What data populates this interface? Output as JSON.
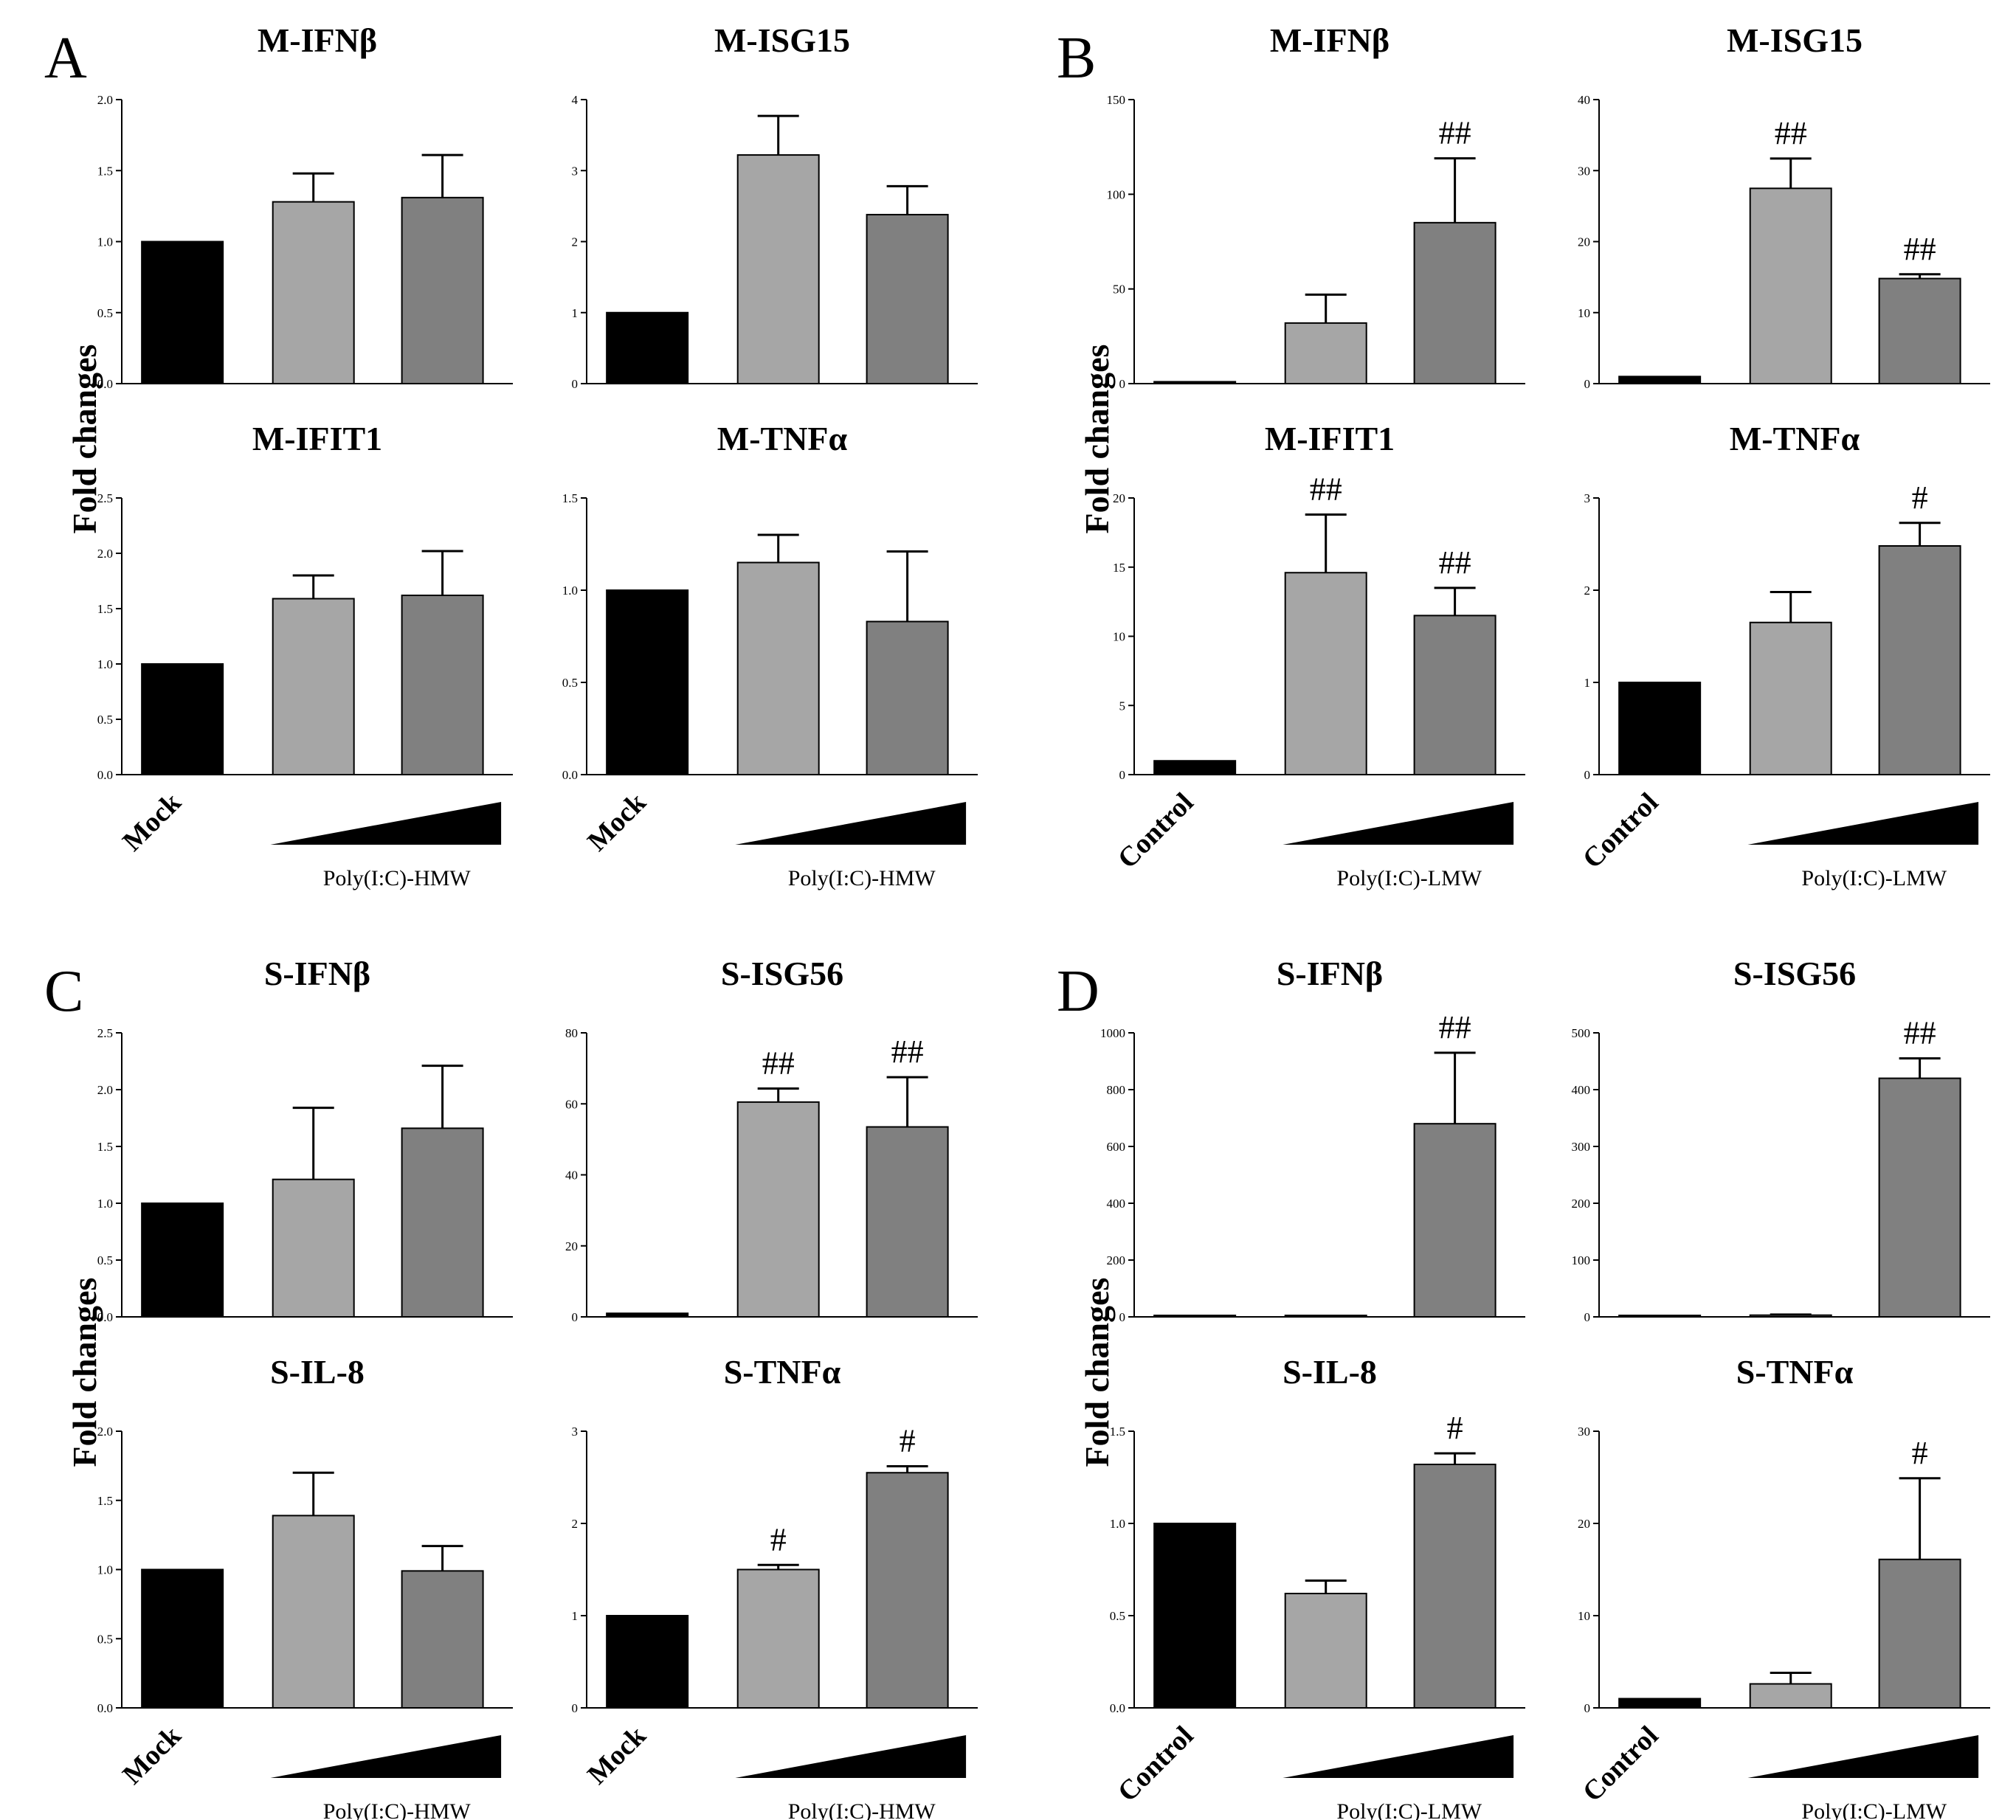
{
  "figure": {
    "y_axis_label": "Fold changes",
    "panels": [
      {
        "letter": "A",
        "control_label": "Mock",
        "treatment_label": "Poly(I:C)-HMW"
      },
      {
        "letter": "B",
        "control_label": "Control",
        "treatment_label": "Poly(I:C)-LMW"
      },
      {
        "letter": "C",
        "control_label": "Mock",
        "treatment_label": "Poly(I:C)-HMW"
      },
      {
        "letter": "D",
        "control_label": "Control",
        "treatment_label": "Poly(I:C)-LMW"
      }
    ]
  },
  "colors": {
    "control": "#000000",
    "low_dose": "#a6a6a6",
    "high_dose": "#808080"
  },
  "chart_data": [
    {
      "id": "A1",
      "panel": "A",
      "type": "bar",
      "title": "M-IFNβ",
      "ylim": [
        0,
        2.0
      ],
      "yticks": [
        "0.0",
        "0.5",
        "1.0",
        "1.5",
        "2.0"
      ],
      "values": [
        1.0,
        1.28,
        1.31
      ],
      "errors": [
        0,
        0.2,
        0.3
      ],
      "sig": [
        "",
        "",
        ""
      ]
    },
    {
      "id": "A2",
      "panel": "A",
      "type": "bar",
      "title": "M-ISG15",
      "ylim": [
        0,
        4
      ],
      "yticks": [
        "0",
        "1",
        "2",
        "3",
        "4"
      ],
      "values": [
        1.0,
        3.22,
        2.38
      ],
      "errors": [
        0,
        0.55,
        0.4
      ],
      "sig": [
        "",
        "",
        ""
      ]
    },
    {
      "id": "A3",
      "panel": "A",
      "type": "bar",
      "title": "M-IFIT1",
      "ylim": [
        0,
        2.5
      ],
      "yticks": [
        "0.0",
        "0.5",
        "1.0",
        "1.5",
        "2.0",
        "2.5"
      ],
      "values": [
        1.0,
        1.59,
        1.62
      ],
      "errors": [
        0,
        0.21,
        0.4
      ],
      "sig": [
        "",
        "",
        ""
      ]
    },
    {
      "id": "A4",
      "panel": "A",
      "type": "bar",
      "title": "M-TNFα",
      "ylim": [
        0,
        1.5
      ],
      "yticks": [
        "0.0",
        "0.5",
        "1.0",
        "1.5"
      ],
      "values": [
        1.0,
        1.15,
        0.83
      ],
      "errors": [
        0,
        0.15,
        0.38
      ],
      "sig": [
        "",
        "",
        ""
      ]
    },
    {
      "id": "B1",
      "panel": "B",
      "type": "bar",
      "title": "M-IFNβ",
      "ylim": [
        0,
        150
      ],
      "yticks": [
        "0",
        "50",
        "100",
        "150"
      ],
      "values": [
        1.0,
        32,
        85
      ],
      "errors": [
        0,
        15,
        34
      ],
      "sig": [
        "",
        "",
        "##"
      ]
    },
    {
      "id": "B2",
      "panel": "B",
      "type": "bar",
      "title": "M-ISG15",
      "ylim": [
        0,
        40
      ],
      "yticks": [
        "0",
        "10",
        "20",
        "30",
        "40"
      ],
      "values": [
        1.0,
        27.5,
        14.8
      ],
      "errors": [
        0,
        4.2,
        0.6
      ],
      "sig": [
        "",
        "##",
        "##"
      ]
    },
    {
      "id": "B3",
      "panel": "B",
      "type": "bar",
      "title": "M-IFIT1",
      "ylim": [
        0,
        20
      ],
      "yticks": [
        "0",
        "5",
        "10",
        "15",
        "20"
      ],
      "values": [
        1.0,
        14.6,
        11.5
      ],
      "errors": [
        0,
        4.2,
        2.0
      ],
      "sig": [
        "",
        "##",
        "##"
      ]
    },
    {
      "id": "B4",
      "panel": "B",
      "type": "bar",
      "title": "M-TNFα",
      "ylim": [
        0,
        3
      ],
      "yticks": [
        "0",
        "1",
        "2",
        "3"
      ],
      "values": [
        1.0,
        1.65,
        2.48
      ],
      "errors": [
        0,
        0.33,
        0.25
      ],
      "sig": [
        "",
        "",
        "#"
      ]
    },
    {
      "id": "C1",
      "panel": "C",
      "type": "bar",
      "title": "S-IFNβ",
      "ylim": [
        0,
        2.5
      ],
      "yticks": [
        "0.0",
        "0.5",
        "1.0",
        "1.5",
        "2.0",
        "2.5"
      ],
      "values": [
        1.0,
        1.21,
        1.66
      ],
      "errors": [
        0,
        0.63,
        0.55
      ],
      "sig": [
        "",
        "",
        ""
      ]
    },
    {
      "id": "C2",
      "panel": "C",
      "type": "bar",
      "title": "S-ISG56",
      "ylim": [
        0,
        80
      ],
      "yticks": [
        "0",
        "20",
        "40",
        "60",
        "80"
      ],
      "values": [
        1.0,
        60.5,
        53.5
      ],
      "errors": [
        0,
        3.8,
        14
      ],
      "sig": [
        "",
        "##",
        "##"
      ]
    },
    {
      "id": "C3",
      "panel": "C",
      "type": "bar",
      "title": "S-IL-8",
      "ylim": [
        0,
        2.0
      ],
      "yticks": [
        "0.0",
        "0.5",
        "1.0",
        "1.5",
        "2.0"
      ],
      "values": [
        1.0,
        1.39,
        0.99
      ],
      "errors": [
        0,
        0.31,
        0.18
      ],
      "sig": [
        "",
        "",
        ""
      ]
    },
    {
      "id": "C4",
      "panel": "C",
      "type": "bar",
      "title": "S-TNFα",
      "ylim": [
        0,
        3
      ],
      "yticks": [
        "0",
        "1",
        "2",
        "3"
      ],
      "values": [
        1.0,
        1.5,
        2.55
      ],
      "errors": [
        0,
        0.05,
        0.07
      ],
      "sig": [
        "",
        "#",
        "#"
      ]
    },
    {
      "id": "D1",
      "panel": "D",
      "type": "bar",
      "title": "S-IFNβ",
      "ylim": [
        0,
        1000
      ],
      "yticks": [
        "0",
        "200",
        "400",
        "600",
        "800",
        "1000"
      ],
      "values": [
        1.0,
        3.0,
        680
      ],
      "errors": [
        0,
        1.0,
        250
      ],
      "sig": [
        "",
        "",
        "##"
      ]
    },
    {
      "id": "D2",
      "panel": "D",
      "type": "bar",
      "title": "S-ISG56",
      "ylim": [
        0,
        500
      ],
      "yticks": [
        "0",
        "100",
        "200",
        "300",
        "400",
        "500"
      ],
      "values": [
        1.0,
        3.0,
        420
      ],
      "errors": [
        0,
        1.0,
        35
      ],
      "sig": [
        "",
        "",
        "##"
      ]
    },
    {
      "id": "D3",
      "panel": "D",
      "type": "bar",
      "title": "S-IL-8",
      "ylim": [
        0,
        1.5
      ],
      "yticks": [
        "0.0",
        "0.5",
        "1.0",
        "1.5"
      ],
      "values": [
        1.0,
        0.62,
        1.32
      ],
      "errors": [
        0,
        0.07,
        0.06
      ],
      "sig": [
        "",
        "",
        "#"
      ]
    },
    {
      "id": "D4",
      "panel": "D",
      "type": "bar",
      "title": "S-TNFα",
      "ylim": [
        0,
        30
      ],
      "yticks": [
        "0",
        "10",
        "20",
        "30"
      ],
      "values": [
        1.0,
        2.6,
        16.1
      ],
      "errors": [
        0,
        1.2,
        8.8
      ],
      "sig": [
        "",
        "",
        "#"
      ]
    }
  ]
}
